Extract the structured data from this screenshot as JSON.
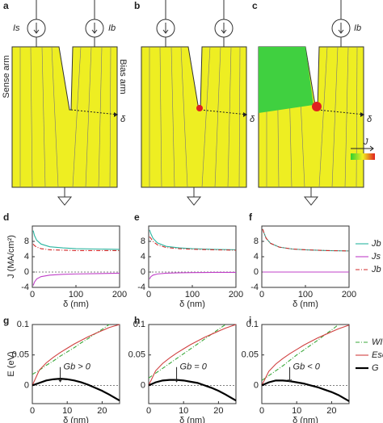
{
  "figure": {
    "panel_labels": [
      "a",
      "b",
      "c",
      "d",
      "e",
      "f",
      "g",
      "h",
      "i"
    ],
    "diagram": {
      "source_left": "Is",
      "source_right": "Ib",
      "source_right_c": "Ib",
      "sense_arm": "Sense arm",
      "bias_arm": "Bias arm",
      "delta": [
        "δ",
        "δ",
        "δ"
      ],
      "colorbar_label": "J"
    }
  },
  "chart_data": [
    {
      "type": "line",
      "xlabel": "δ (nm)",
      "ylabel": "J (MA/cm²)",
      "x": [
        2,
        5,
        10,
        20,
        40,
        70,
        100,
        150,
        200
      ],
      "xlim": [
        0,
        200
      ],
      "xticks": [
        0,
        100,
        200
      ],
      "ylim": [
        -4,
        12
      ],
      "yticks": [
        -4,
        0,
        4,
        8
      ],
      "zero_line": true,
      "series": [
        {
          "name": "Jb",
          "color": "#2ab5a0",
          "style": "solid",
          "values": [
            10.8,
            9.5,
            8.3,
            7.3,
            6.6,
            6.3,
            6.1,
            6.0,
            5.9
          ]
        },
        {
          "name": "Js",
          "color": "#c040c8",
          "style": "solid",
          "values": [
            -3.5,
            -2.6,
            -1.8,
            -1.2,
            -0.8,
            -0.6,
            -0.5,
            -0.4,
            -0.3
          ]
        },
        {
          "name": "Jb + Js",
          "color": "#d02828",
          "style": "dashdot",
          "values": [
            7.3,
            6.9,
            6.5,
            6.1,
            5.8,
            5.7,
            5.6,
            5.6,
            5.6
          ]
        }
      ]
    },
    {
      "type": "line",
      "xlabel": "δ (nm)",
      "x": [
        2,
        5,
        10,
        20,
        40,
        70,
        100,
        150,
        200
      ],
      "xlim": [
        0,
        200
      ],
      "xticks": [
        0,
        100,
        200
      ],
      "ylim": [
        -4,
        12
      ],
      "yticks": [
        -4,
        0,
        4,
        8
      ],
      "zero_line": true,
      "series": [
        {
          "name": "Jb",
          "color": "#2ab5a0",
          "style": "solid",
          "values": [
            11,
            10,
            8.8,
            7.6,
            6.7,
            6.3,
            6.1,
            5.9,
            5.8
          ]
        },
        {
          "name": "Js",
          "color": "#c040c8",
          "style": "solid",
          "values": [
            -1.8,
            -1.2,
            -0.8,
            -0.5,
            -0.3,
            -0.2,
            -0.15,
            -0.1,
            -0.1
          ]
        },
        {
          "name": "Jb + Js",
          "color": "#d02828",
          "style": "dashdot",
          "values": [
            9.2,
            8.8,
            8.0,
            7.1,
            6.4,
            6.1,
            5.95,
            5.8,
            5.7
          ]
        }
      ]
    },
    {
      "type": "line",
      "xlabel": "δ (nm)",
      "x": [
        2,
        5,
        10,
        20,
        40,
        70,
        100,
        150,
        200
      ],
      "xlim": [
        0,
        200
      ],
      "xticks": [
        0,
        100,
        200
      ],
      "ylim": [
        -4,
        12
      ],
      "yticks": [
        -4,
        0,
        4,
        8
      ],
      "zero_line": true,
      "legend": "right",
      "series": [
        {
          "name": "Jb",
          "color": "#2ab5a0",
          "style": "solid",
          "values": [
            11.2,
            10.2,
            8.8,
            7.5,
            6.5,
            6.0,
            5.8,
            5.6,
            5.5
          ]
        },
        {
          "name": "Js",
          "color": "#c040c8",
          "style": "solid",
          "values": [
            0,
            0,
            0,
            0,
            0,
            0,
            0,
            0,
            0
          ]
        },
        {
          "name": "Jb + Js",
          "color": "#d02828",
          "style": "dashdot",
          "values": [
            11.2,
            10.2,
            8.8,
            7.5,
            6.5,
            6.0,
            5.8,
            5.6,
            5.5
          ]
        }
      ]
    },
    {
      "type": "line",
      "xlabel": "δ (nm)",
      "ylabel": "E (eV)",
      "annotation": "Gb > 0",
      "x": [
        0,
        2,
        4,
        6,
        8,
        10,
        12,
        14,
        16,
        18,
        20,
        22,
        25
      ],
      "xlim": [
        0,
        25
      ],
      "xticks": [
        0,
        10,
        20
      ],
      "ylim": [
        -0.03,
        0.1
      ],
      "yticks": [
        0,
        0.05,
        0.1
      ],
      "zero_line": true,
      "series": [
        {
          "name": "WI",
          "color": "#3aa83a",
          "style": "dashdot",
          "values": [
            0.018,
            0.025,
            0.033,
            0.04,
            0.048,
            0.055,
            0.062,
            0.07,
            0.077,
            0.085,
            0.092,
            0.1,
            null
          ]
        },
        {
          "name": "Eself",
          "color": "#d04040",
          "style": "solid",
          "values": [
            0,
            0.025,
            0.037,
            0.046,
            0.054,
            0.061,
            0.068,
            0.074,
            0.08,
            0.085,
            0.09,
            0.095,
            0.1
          ]
        },
        {
          "name": "G",
          "color": "#000000",
          "style": "thick",
          "values": [
            0,
            0.004,
            0.008,
            0.01,
            0.011,
            0.01,
            0.008,
            0.005,
            0.001,
            -0.004,
            -0.009,
            -0.015,
            -0.025
          ]
        }
      ]
    },
    {
      "type": "line",
      "xlabel": "δ (nm)",
      "annotation": "Gb = 0",
      "x": [
        0,
        2,
        4,
        6,
        8,
        10,
        12,
        14,
        16,
        18,
        20,
        22,
        25
      ],
      "xlim": [
        0,
        25
      ],
      "xticks": [
        0,
        10,
        20
      ],
      "ylim": [
        -0.03,
        0.1
      ],
      "yticks": [
        0,
        0.05,
        0.1
      ],
      "zero_line": true,
      "series": [
        {
          "name": "WI",
          "color": "#3aa83a",
          "style": "dashdot",
          "values": [
            0.012,
            0.02,
            0.028,
            0.036,
            0.044,
            0.052,
            0.06,
            0.068,
            0.076,
            0.084,
            0.092,
            0.1,
            null
          ]
        },
        {
          "name": "Eself",
          "color": "#d04040",
          "style": "solid",
          "values": [
            0,
            0.024,
            0.036,
            0.045,
            0.053,
            0.06,
            0.067,
            0.073,
            0.079,
            0.084,
            0.089,
            0.094,
            0.1
          ]
        },
        {
          "name": "G",
          "color": "#000000",
          "style": "thick",
          "values": [
            0,
            0.005,
            0.008,
            0.009,
            0.009,
            0.008,
            0.006,
            0.004,
            0.0,
            -0.004,
            -0.009,
            -0.015,
            -0.025
          ]
        }
      ]
    },
    {
      "type": "line",
      "xlabel": "δ (nm)",
      "annotation": "Gb < 0",
      "legend": "right",
      "x": [
        0,
        2,
        4,
        6,
        8,
        10,
        12,
        14,
        16,
        18,
        20,
        22,
        25
      ],
      "xlim": [
        0,
        25
      ],
      "xticks": [
        0,
        10,
        20
      ],
      "ylim": [
        -0.03,
        0.1
      ],
      "yticks": [
        0,
        0.05,
        0.1
      ],
      "zero_line": true,
      "series": [
        {
          "name": "WI",
          "color": "#3aa83a",
          "style": "dashdot",
          "values": [
            0.008,
            0.016,
            0.024,
            0.032,
            0.041,
            0.05,
            0.058,
            0.066,
            0.074,
            0.083,
            0.091,
            0.1,
            null
          ]
        },
        {
          "name": "Eself",
          "color": "#d04040",
          "style": "solid",
          "values": [
            0,
            0.023,
            0.035,
            0.044,
            0.052,
            0.059,
            0.066,
            0.072,
            0.078,
            0.083,
            0.088,
            0.093,
            0.099
          ]
        },
        {
          "name": "G",
          "color": "#000000",
          "style": "thick",
          "values": [
            0,
            0.005,
            0.008,
            0.008,
            0.007,
            0.005,
            0.003,
            0.0,
            -0.003,
            -0.007,
            -0.011,
            -0.016,
            -0.026
          ]
        }
      ]
    }
  ]
}
